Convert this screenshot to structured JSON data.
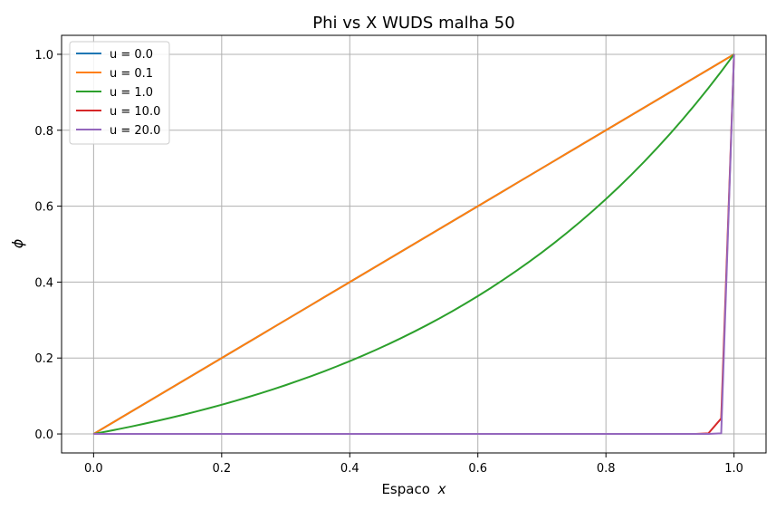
{
  "chart_data": {
    "type": "line",
    "title": "Phi vs X WUDS malha 50",
    "xlabel": "Espaco",
    "xlabel_var": "x",
    "ylabel": "ϕ",
    "xlim": [
      -0.05,
      1.05
    ],
    "ylim": [
      -0.05,
      1.05
    ],
    "xticks": [
      0.0,
      0.2,
      0.4,
      0.6,
      0.8,
      1.0
    ],
    "xtick_labels": [
      "0.0",
      "0.2",
      "0.4",
      "0.6",
      "0.8",
      "1.0"
    ],
    "yticks": [
      0.0,
      0.2,
      0.4,
      0.6,
      0.8,
      1.0
    ],
    "ytick_labels": [
      "0.0",
      "0.2",
      "0.4",
      "0.6",
      "0.8",
      "1.0"
    ],
    "grid": true,
    "legend_position": "top-left",
    "series": [
      {
        "name": "u = 0.0",
        "u": 0.0,
        "color": "#1f77b4"
      },
      {
        "name": "u = 0.1",
        "u": 0.1,
        "color": "#ff7f0e"
      },
      {
        "name": "u = 1.0",
        "u": 1.0,
        "color": "#2ca02c"
      },
      {
        "name": "u = 10.0",
        "u": 10.0,
        "color": "#d62728"
      },
      {
        "name": "u = 20.0",
        "u": 20.0,
        "color": "#9467bd"
      }
    ]
  }
}
